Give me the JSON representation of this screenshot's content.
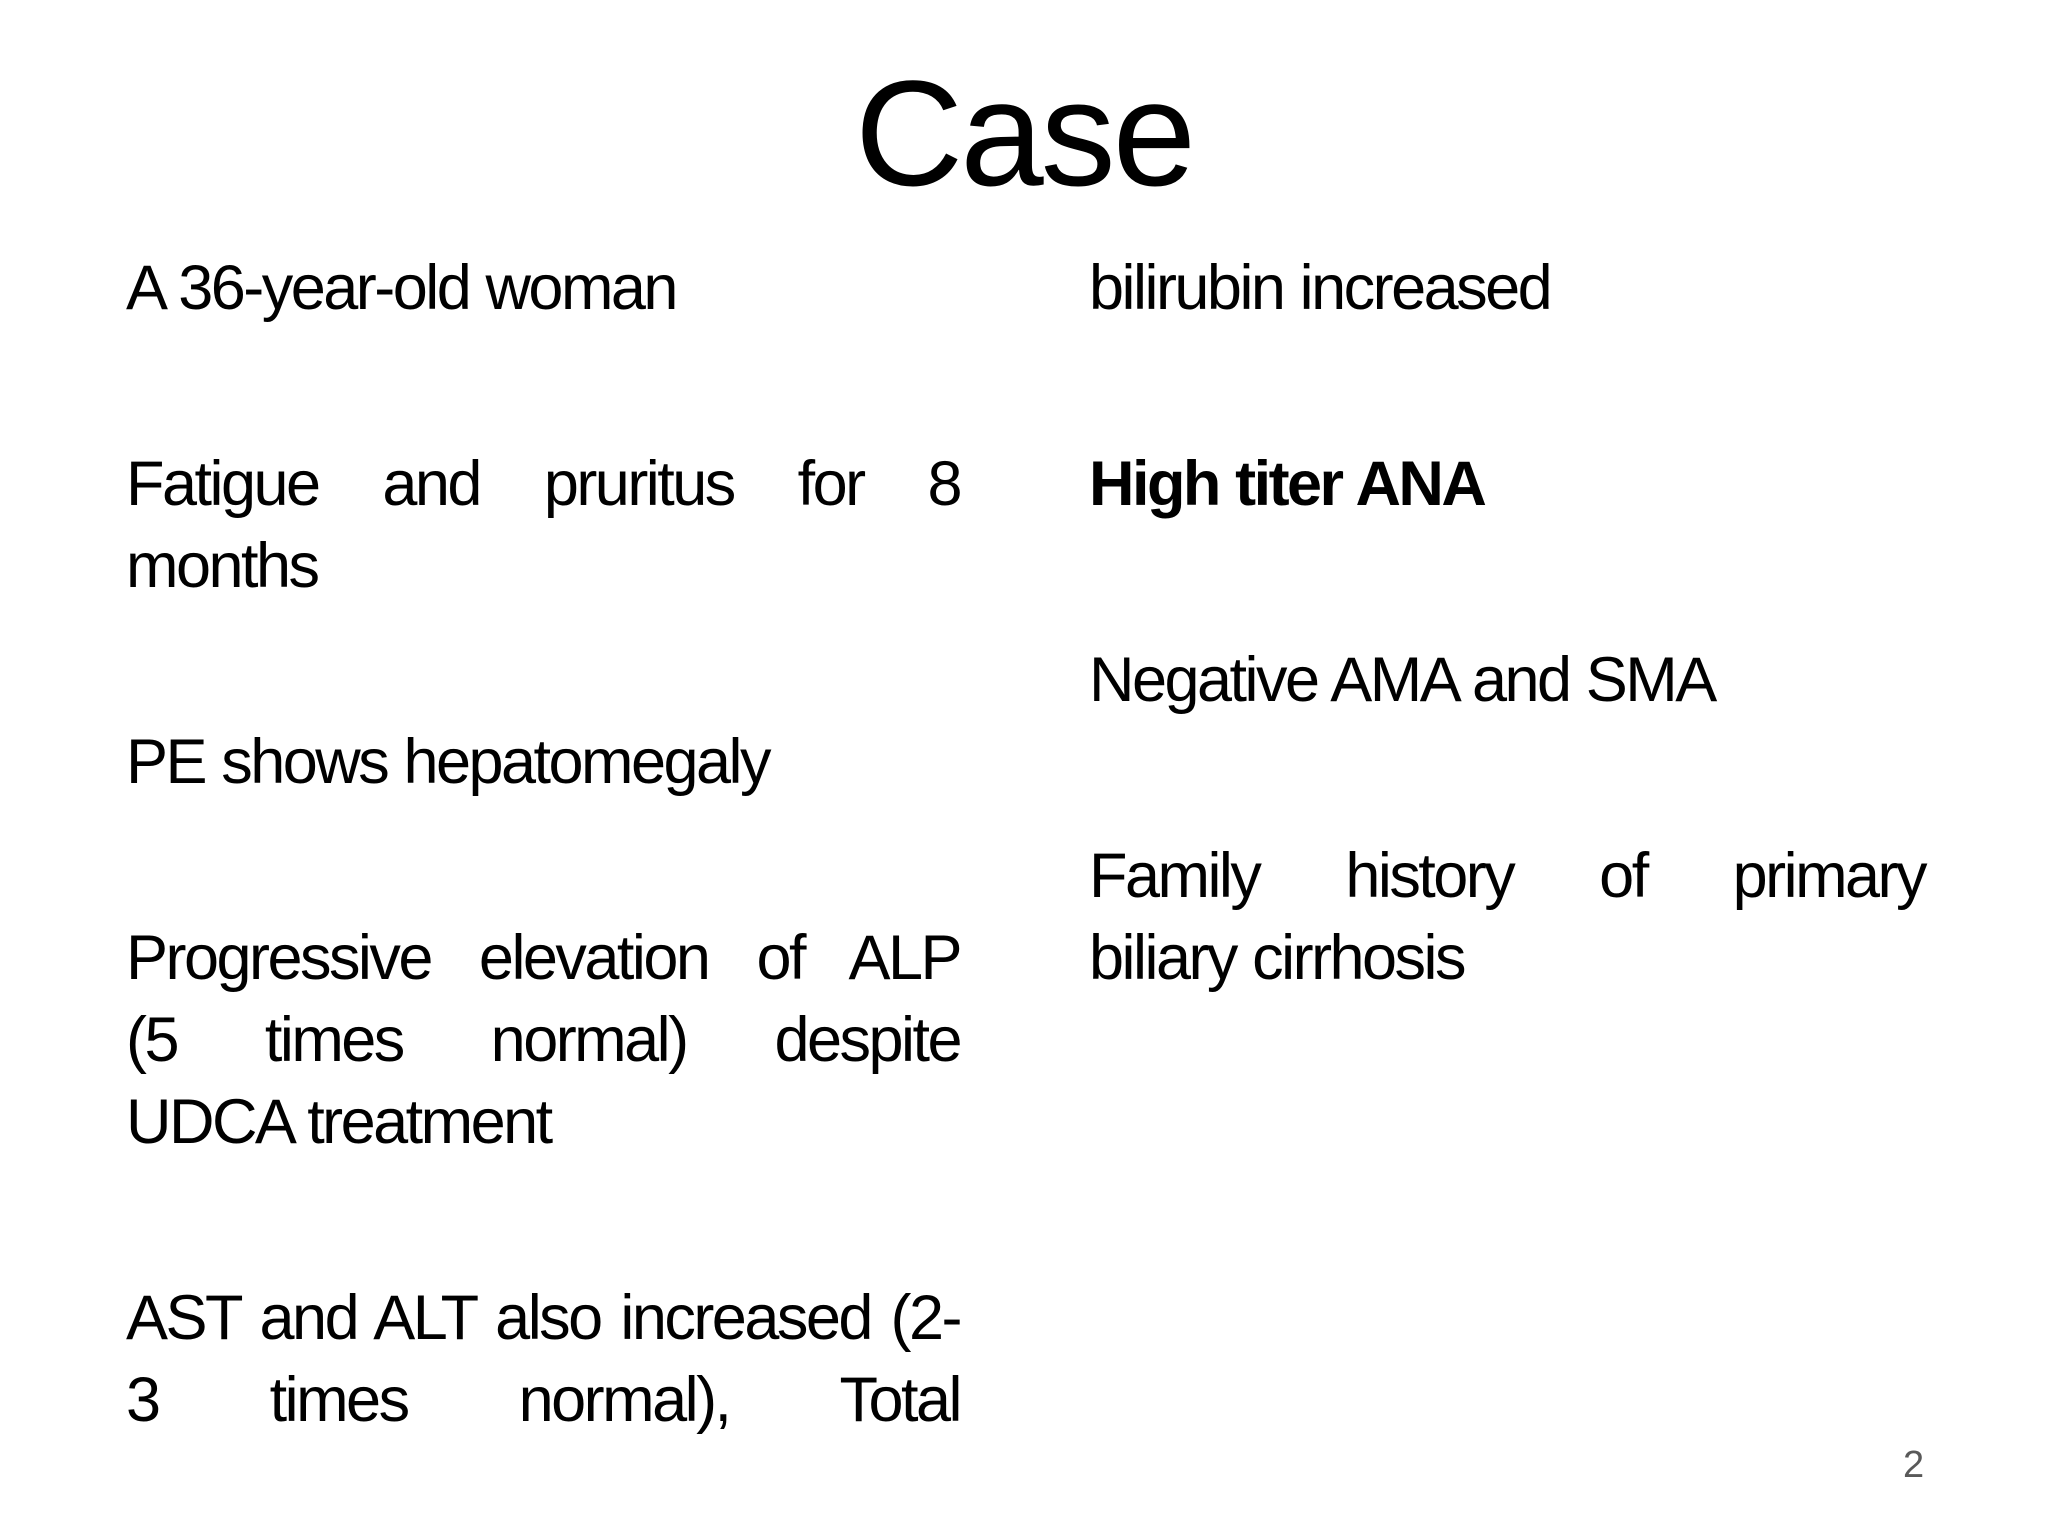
{
  "slide": {
    "title": "Case",
    "page_number": "2",
    "colors": {
      "background": "#ffffff",
      "text": "#000000",
      "page_number": "#595959"
    },
    "columns": [
      {
        "paragraphs": [
          {
            "bold": false,
            "lines": [
              {
                "text": "A 36-year-old woman",
                "justify": false
              }
            ]
          },
          {
            "bold": false,
            "lines": [
              {
                "text": "Fatigue and pruritus for 8",
                "justify": true
              },
              {
                "text": "months",
                "justify": false
              }
            ]
          },
          {
            "bold": false,
            "lines": [
              {
                "text": "PE shows hepatomegaly",
                "justify": false
              }
            ]
          },
          {
            "bold": false,
            "lines": [
              {
                "text": "Progressive elevation of ALP",
                "justify": true
              },
              {
                "text": "(5 times normal) despite",
                "justify": true
              },
              {
                "text": "UDCA treatment",
                "justify": false
              }
            ]
          },
          {
            "bold": false,
            "lines": [
              {
                "text": "AST and ALT also increased (2-",
                "justify": true
              },
              {
                "text": "3 times normal), Total",
                "justify": true
              }
            ]
          }
        ]
      },
      {
        "paragraphs": [
          {
            "bold": false,
            "lines": [
              {
                "text": "bilirubin increased",
                "justify": false
              }
            ]
          },
          {
            "bold": true,
            "lines": [
              {
                "text": "High titer ANA",
                "justify": false
              }
            ]
          },
          {
            "bold": false,
            "lines": [
              {
                "text": "Negative AMA and SMA",
                "justify": false
              }
            ]
          },
          {
            "bold": false,
            "lines": [
              {
                "text": "Family history of primary",
                "justify": true
              },
              {
                "text": "biliary cirrhosis",
                "justify": false
              }
            ]
          }
        ]
      }
    ]
  }
}
